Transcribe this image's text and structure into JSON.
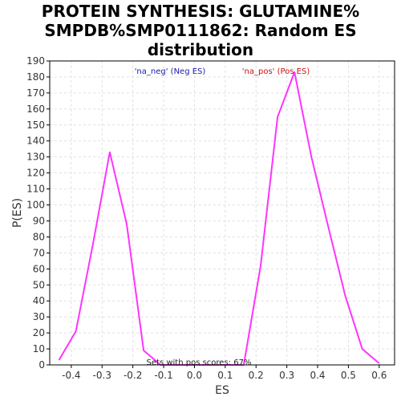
{
  "title_lines": [
    "PROTEIN SYNTHESIS: GLUTAMINE%",
    "SMPDB%SMP0111862: Random ES",
    "distribution"
  ],
  "chart_data": {
    "type": "line",
    "title": "PROTEIN SYNTHESIS: GLUTAMINE% SMPDB%SMP0111862: Random ES distribution",
    "xlabel": "ES",
    "ylabel": "P(ES)",
    "xlim": [
      -0.47,
      0.65
    ],
    "ylim": [
      0,
      190
    ],
    "x_ticks": [
      -0.4,
      -0.3,
      -0.2,
      -0.1,
      0.0,
      0.1,
      0.2,
      0.3,
      0.4,
      0.5,
      0.6
    ],
    "x_tick_labels": [
      "-0.4",
      "-0.3",
      "-0.2",
      "-0.1",
      "0.0",
      "0.1",
      "0.2",
      "0.3",
      "0.4",
      "0.5",
      "0.6"
    ],
    "y_ticks": [
      0,
      10,
      20,
      30,
      40,
      50,
      60,
      70,
      80,
      90,
      100,
      110,
      120,
      130,
      140,
      150,
      160,
      170,
      180,
      190
    ],
    "y_tick_labels": [
      "0",
      "10",
      "20",
      "30",
      "40",
      "50",
      "60",
      "70",
      "80",
      "90",
      "100",
      "110",
      "120",
      "130",
      "140",
      "150",
      "160",
      "170",
      "180",
      "190"
    ],
    "grid": true,
    "series": [
      {
        "color": "#ff33ff",
        "points": [
          [
            -0.44,
            3
          ],
          [
            -0.385,
            21
          ],
          [
            -0.33,
            75
          ],
          [
            -0.275,
            133
          ],
          [
            -0.22,
            88
          ],
          [
            -0.165,
            9
          ],
          [
            -0.11,
            0
          ],
          [
            0.16,
            0
          ],
          [
            0.215,
            62
          ],
          [
            0.27,
            155
          ],
          [
            0.325,
            183
          ],
          [
            0.38,
            130
          ],
          [
            0.435,
            86
          ],
          [
            0.49,
            43
          ],
          [
            0.545,
            10
          ],
          [
            0.6,
            1
          ]
        ]
      }
    ],
    "legend": [
      {
        "label": "'na_neg' (Neg ES)",
        "color": "#1a1aaa"
      },
      {
        "label": "'na_pos' (Pos ES)",
        "color": "#cc1111"
      }
    ],
    "annotation": "Sets with pos scores: 67%",
    "colors": {
      "axis": "#000000",
      "grid": "#e0e0e0",
      "line": "#ff33ff",
      "tick_text": "#333333"
    }
  }
}
